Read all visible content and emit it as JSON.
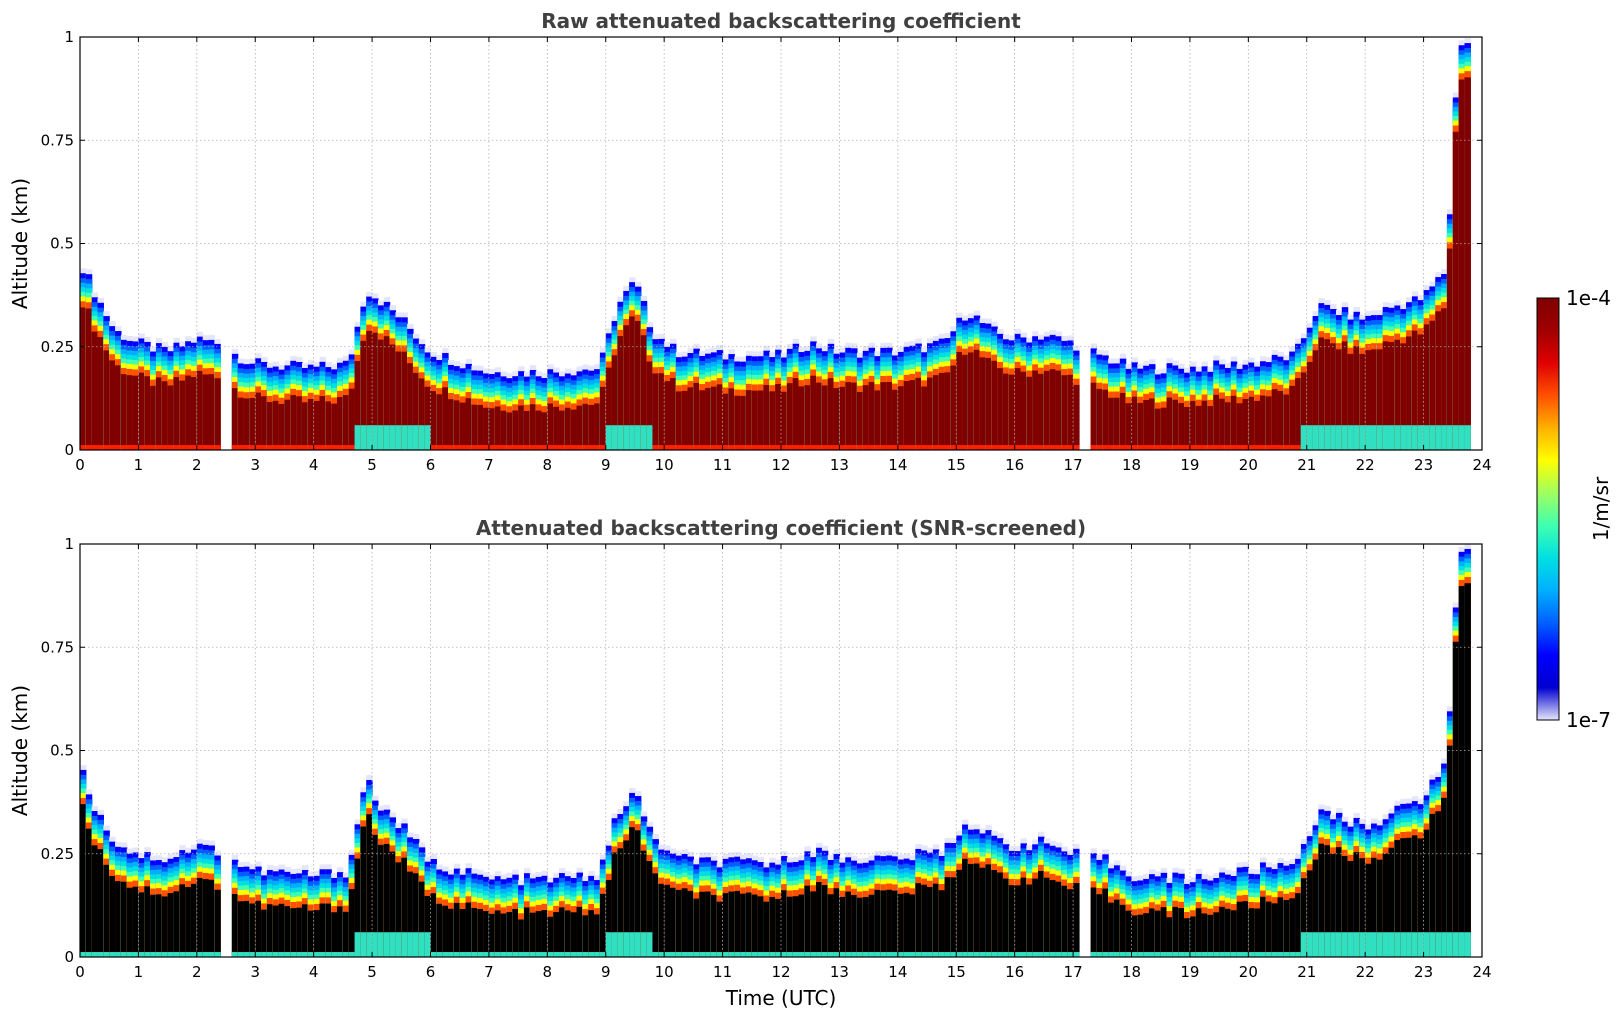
{
  "figure": {
    "xlabel": "Time (UTC)",
    "colorbar": {
      "label": "1/m/sr",
      "max_label": "1e-4",
      "min_label": "1e-7"
    }
  },
  "colormap": [
    "#e6e6fb",
    "#0000d0",
    "#0000ff",
    "#0060ff",
    "#00b0ff",
    "#00e0e0",
    "#40ffb0",
    "#a0ff60",
    "#ffff00",
    "#ffb000",
    "#ff5000",
    "#e00000",
    "#a00000",
    "#7f0000"
  ],
  "chart_data": [
    {
      "type": "heatmap",
      "title": "Raw attenuated backscattering coefficient",
      "ylabel": "Altitude (km)",
      "x_ticks": [
        0,
        1,
        2,
        3,
        4,
        5,
        6,
        7,
        8,
        9,
        10,
        11,
        12,
        13,
        14,
        15,
        16,
        17,
        18,
        19,
        20,
        21,
        22,
        23,
        24
      ],
      "y_ticks": [
        0,
        0.25,
        0.5,
        0.75,
        1
      ],
      "y_tick_labels": [
        "0",
        "0.25",
        "0.5",
        "0.75",
        "1"
      ],
      "xlim": [
        0,
        24
      ],
      "ylim": [
        0,
        1
      ],
      "grid": true,
      "screened": false,
      "layer_top_km": {
        "time": [
          0,
          0.3,
          0.6,
          1.0,
          1.5,
          2.0,
          2.4,
          2.7,
          3.0,
          4.0,
          4.6,
          4.9,
          5.1,
          5.5,
          6.0,
          7.0,
          8.0,
          8.9,
          9.2,
          9.5,
          9.8,
          10.2,
          11.0,
          12.0,
          12.5,
          13.0,
          14.0,
          14.8,
          15.2,
          15.6,
          16.0,
          16.5,
          17.0,
          17.5,
          18.0,
          19.0,
          20.0,
          20.8,
          21.2,
          22.0,
          22.5,
          23.0,
          23.4,
          23.6,
          23.8
        ],
        "altitude": [
          0.47,
          0.38,
          0.3,
          0.27,
          0.25,
          0.28,
          0.27,
          0.24,
          0.22,
          0.21,
          0.22,
          0.4,
          0.38,
          0.33,
          0.25,
          0.2,
          0.2,
          0.21,
          0.36,
          0.42,
          0.3,
          0.25,
          0.24,
          0.24,
          0.27,
          0.25,
          0.25,
          0.27,
          0.35,
          0.3,
          0.28,
          0.29,
          0.27,
          0.24,
          0.21,
          0.21,
          0.22,
          0.24,
          0.36,
          0.33,
          0.36,
          0.38,
          0.45,
          1.0,
          1.0
        ]
      },
      "gaps_utc": [
        2.5,
        17.2
      ]
    },
    {
      "type": "heatmap",
      "title": "Attenuated backscattering coefficient (SNR-screened)",
      "ylabel": "Altitude (km)",
      "x_ticks": [
        0,
        1,
        2,
        3,
        4,
        5,
        6,
        7,
        8,
        9,
        10,
        11,
        12,
        13,
        14,
        15,
        16,
        17,
        18,
        19,
        20,
        21,
        22,
        23,
        24
      ],
      "y_ticks": [
        0,
        0.25,
        0.5,
        0.75,
        1
      ],
      "y_tick_labels": [
        "0",
        "0.25",
        "0.5",
        "0.75",
        "1"
      ],
      "xlim": [
        0,
        24
      ],
      "ylim": [
        0,
        1
      ],
      "grid": true,
      "screened": true,
      "layer_top_km": {
        "time": [
          0,
          0.3,
          0.6,
          1.0,
          1.5,
          2.0,
          2.4,
          2.7,
          3.0,
          4.0,
          4.6,
          4.9,
          5.1,
          5.5,
          6.0,
          7.0,
          8.0,
          8.9,
          9.2,
          9.5,
          9.8,
          10.2,
          11.0,
          12.0,
          12.5,
          13.0,
          14.0,
          14.8,
          15.2,
          15.6,
          16.0,
          16.5,
          17.0,
          17.5,
          18.0,
          19.0,
          20.0,
          20.8,
          21.2,
          22.0,
          22.5,
          23.0,
          23.4,
          23.6,
          23.8
        ],
        "altitude": [
          0.47,
          0.36,
          0.29,
          0.26,
          0.25,
          0.28,
          0.27,
          0.24,
          0.22,
          0.21,
          0.22,
          0.45,
          0.38,
          0.33,
          0.24,
          0.2,
          0.2,
          0.21,
          0.36,
          0.41,
          0.3,
          0.25,
          0.24,
          0.24,
          0.27,
          0.25,
          0.25,
          0.27,
          0.34,
          0.3,
          0.28,
          0.29,
          0.26,
          0.25,
          0.21,
          0.2,
          0.22,
          0.24,
          0.36,
          0.33,
          0.36,
          0.4,
          0.48,
          1.0,
          1.0
        ]
      },
      "gaps_utc": [
        2.5,
        17.2
      ]
    }
  ]
}
